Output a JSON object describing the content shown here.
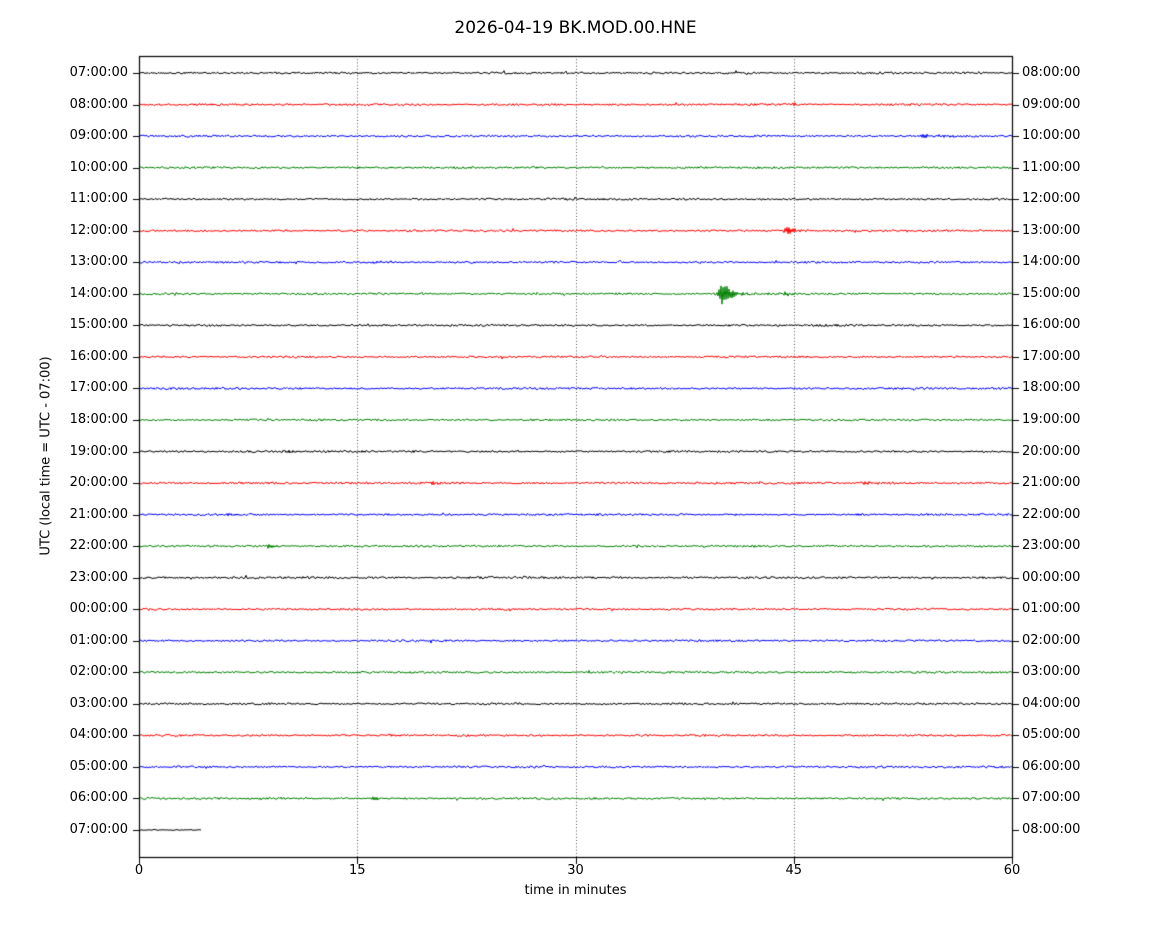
{
  "chart_data": {
    "type": "line",
    "subtype": "helicorder-dayplot",
    "title": "2026-04-19 BK.MOD.00.HNE",
    "xlabel": "time in minutes",
    "ylabel": "UTC (local time = UTC - 07:00)",
    "xlim": [
      0,
      60
    ],
    "xticks": [
      0,
      15,
      30,
      45,
      60
    ],
    "grid": {
      "vertical_dotted_at": [
        15,
        30,
        45
      ]
    },
    "minutes_per_row": 60,
    "color_cycle": [
      "#000000",
      "#ff0000",
      "#0000ff",
      "#008000"
    ],
    "rows": [
      {
        "utc_start": "07:00:00",
        "utc_end": "08:00:00",
        "color": "#000000",
        "start_min": 0,
        "end_min": 60,
        "noise_amp": 1.0,
        "events": []
      },
      {
        "utc_start": "08:00:00",
        "utc_end": "09:00:00",
        "color": "#ff0000",
        "start_min": 0,
        "end_min": 60,
        "noise_amp": 1.0,
        "events": [
          {
            "t": 44.8,
            "amp": 1.4,
            "tau": 0.5,
            "dur": 1.0
          }
        ]
      },
      {
        "utc_start": "09:00:00",
        "utc_end": "10:00:00",
        "color": "#0000ff",
        "start_min": 0,
        "end_min": 60,
        "noise_amp": 1.0,
        "events": [
          {
            "t": 53.5,
            "amp": 1.5,
            "tau": 1.6,
            "dur": 4.0
          }
        ]
      },
      {
        "utc_start": "10:00:00",
        "utc_end": "11:00:00",
        "color": "#008000",
        "start_min": 0,
        "end_min": 60,
        "noise_amp": 1.0,
        "events": []
      },
      {
        "utc_start": "11:00:00",
        "utc_end": "12:00:00",
        "color": "#000000",
        "start_min": 0,
        "end_min": 60,
        "noise_amp": 1.0,
        "events": []
      },
      {
        "utc_start": "12:00:00",
        "utc_end": "13:00:00",
        "color": "#ff0000",
        "start_min": 0,
        "end_min": 60,
        "noise_amp": 1.0,
        "events": [
          {
            "t": 44.3,
            "amp": 4.0,
            "tau": 0.35,
            "dur": 1.6
          }
        ]
      },
      {
        "utc_start": "13:00:00",
        "utc_end": "14:00:00",
        "color": "#0000ff",
        "start_min": 0,
        "end_min": 60,
        "noise_amp": 1.0,
        "events": [
          {
            "t": 15.9,
            "amp": 1.6,
            "tau": 0.5,
            "dur": 1.5
          }
        ]
      },
      {
        "utc_start": "14:00:00",
        "utc_end": "15:00:00",
        "color": "#008000",
        "start_min": 0,
        "end_min": 60,
        "noise_amp": 1.0,
        "events": [
          {
            "t": 39.85,
            "amp": 13.0,
            "tau": 0.45,
            "dur": 3.2
          },
          {
            "t": 44.25,
            "amp": 2.0,
            "tau": 0.3,
            "dur": 0.9
          }
        ]
      },
      {
        "utc_start": "15:00:00",
        "utc_end": "16:00:00",
        "color": "#000000",
        "start_min": 0,
        "end_min": 60,
        "noise_amp": 1.0,
        "events": []
      },
      {
        "utc_start": "16:00:00",
        "utc_end": "17:00:00",
        "color": "#ff0000",
        "start_min": 0,
        "end_min": 60,
        "noise_amp": 1.0,
        "events": []
      },
      {
        "utc_start": "17:00:00",
        "utc_end": "18:00:00",
        "color": "#0000ff",
        "start_min": 0,
        "end_min": 60,
        "noise_amp": 1.0,
        "events": []
      },
      {
        "utc_start": "18:00:00",
        "utc_end": "19:00:00",
        "color": "#008000",
        "start_min": 0,
        "end_min": 60,
        "noise_amp": 1.0,
        "events": []
      },
      {
        "utc_start": "19:00:00",
        "utc_end": "20:00:00",
        "color": "#000000",
        "start_min": 0,
        "end_min": 60,
        "noise_amp": 1.0,
        "events": [
          {
            "t": 9.9,
            "amp": 1.3,
            "tau": 0.4,
            "dur": 0.8
          }
        ]
      },
      {
        "utc_start": "20:00:00",
        "utc_end": "21:00:00",
        "color": "#ff0000",
        "start_min": 0,
        "end_min": 60,
        "noise_amp": 1.1,
        "events": [
          {
            "t": 20.0,
            "amp": 1.4,
            "tau": 1.2,
            "dur": 3.0
          },
          {
            "t": 49.5,
            "amp": 1.5,
            "tau": 0.8,
            "dur": 2.0
          }
        ]
      },
      {
        "utc_start": "21:00:00",
        "utc_end": "22:00:00",
        "color": "#0000ff",
        "start_min": 0,
        "end_min": 60,
        "noise_amp": 1.0,
        "events": [
          {
            "t": 5.5,
            "amp": 1.3,
            "tau": 1.0,
            "dur": 2.0
          }
        ]
      },
      {
        "utc_start": "22:00:00",
        "utc_end": "23:00:00",
        "color": "#008000",
        "start_min": 0,
        "end_min": 60,
        "noise_amp": 1.0,
        "events": [
          {
            "t": 8.8,
            "amp": 1.8,
            "tau": 0.25,
            "dur": 0.8
          }
        ]
      },
      {
        "utc_start": "23:00:00",
        "utc_end": "00:00:00",
        "color": "#000000",
        "start_min": 0,
        "end_min": 60,
        "noise_amp": 1.1,
        "events": []
      },
      {
        "utc_start": "00:00:00",
        "utc_end": "01:00:00",
        "color": "#ff0000",
        "start_min": 0,
        "end_min": 60,
        "noise_amp": 1.0,
        "events": []
      },
      {
        "utc_start": "01:00:00",
        "utc_end": "02:00:00",
        "color": "#0000ff",
        "start_min": 0,
        "end_min": 60,
        "noise_amp": 1.0,
        "events": []
      },
      {
        "utc_start": "02:00:00",
        "utc_end": "03:00:00",
        "color": "#008000",
        "start_min": 0,
        "end_min": 60,
        "noise_amp": 1.0,
        "events": []
      },
      {
        "utc_start": "03:00:00",
        "utc_end": "04:00:00",
        "color": "#000000",
        "start_min": 0,
        "end_min": 60,
        "noise_amp": 1.0,
        "events": []
      },
      {
        "utc_start": "04:00:00",
        "utc_end": "05:00:00",
        "color": "#ff0000",
        "start_min": 0,
        "end_min": 60,
        "noise_amp": 1.0,
        "events": []
      },
      {
        "utc_start": "05:00:00",
        "utc_end": "06:00:00",
        "color": "#0000ff",
        "start_min": 0,
        "end_min": 60,
        "noise_amp": 1.0,
        "events": []
      },
      {
        "utc_start": "06:00:00",
        "utc_end": "07:00:00",
        "color": "#008000",
        "start_min": 0,
        "end_min": 60,
        "noise_amp": 1.0,
        "events": [
          {
            "t": 15.95,
            "amp": 2.2,
            "tau": 0.25,
            "dur": 0.8
          }
        ]
      },
      {
        "utc_start": "07:00:00",
        "utc_end": "08:00:00",
        "color": "#000000",
        "start_min": 0,
        "end_min": 4.3,
        "noise_amp": 0.5,
        "events": []
      }
    ]
  }
}
